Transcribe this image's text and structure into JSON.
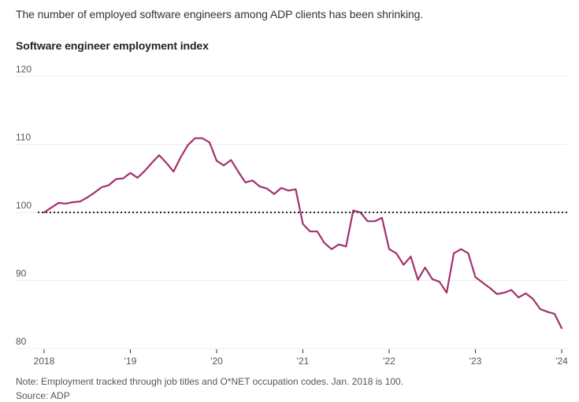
{
  "header": {
    "subtitle": "The number of employed software engineers among ADP clients has been shrinking.",
    "title": "Software engineer employment index"
  },
  "footer": {
    "note": "Note: Employment tracked through job titles and O*NET occupation codes. Jan. 2018 is 100.",
    "source": "Source: ADP"
  },
  "colors": {
    "line": "#a3306e",
    "grid": "#ececec",
    "reference": "#222222"
  },
  "chart_data": {
    "type": "line",
    "title": "Software engineer employment index",
    "subtitle": "The number of employed software engineers among ADP clients has been shrinking.",
    "xlabel": "",
    "ylabel": "",
    "ylim": [
      80,
      120
    ],
    "yticks": [
      80,
      90,
      100,
      110,
      120
    ],
    "ytick_labels": [
      "80",
      "90",
      "100",
      "110",
      "120"
    ],
    "xlim_months_from_jan2018": [
      0,
      72
    ],
    "xticks_months_from_jan2018": [
      0,
      12,
      24,
      36,
      48,
      60,
      72
    ],
    "xtick_labels": [
      "2018",
      "'19",
      "'20",
      "'21",
      "'22",
      "'23",
      "'24"
    ],
    "grid": true,
    "reference_line": {
      "value": 100,
      "style": "dotted"
    },
    "x_unit": "monthly, Jan 2018 to Jan 2024",
    "series": [
      {
        "name": "Software engineer employment index",
        "values": [
          100.0,
          100.7,
          101.4,
          101.3,
          101.5,
          101.6,
          102.2,
          102.9,
          103.7,
          104.0,
          104.9,
          105.0,
          105.8,
          105.1,
          106.1,
          107.3,
          108.4,
          107.3,
          106.0,
          108.1,
          109.9,
          110.9,
          110.9,
          110.3,
          107.6,
          106.9,
          107.7,
          106.0,
          104.4,
          104.7,
          103.8,
          103.5,
          102.7,
          103.6,
          103.2,
          103.4,
          98.3,
          97.2,
          97.2,
          95.5,
          94.6,
          95.3,
          95.0,
          100.3,
          100.0,
          98.7,
          98.7,
          99.2,
          94.6,
          94.0,
          92.3,
          93.5,
          90.1,
          91.9,
          90.2,
          89.8,
          88.2,
          94.0,
          94.6,
          94.0,
          90.5,
          89.7,
          88.9,
          88.0,
          88.2,
          88.6,
          87.5,
          88.1,
          87.3,
          85.8,
          85.4,
          85.1,
          83.0
        ]
      }
    ]
  }
}
